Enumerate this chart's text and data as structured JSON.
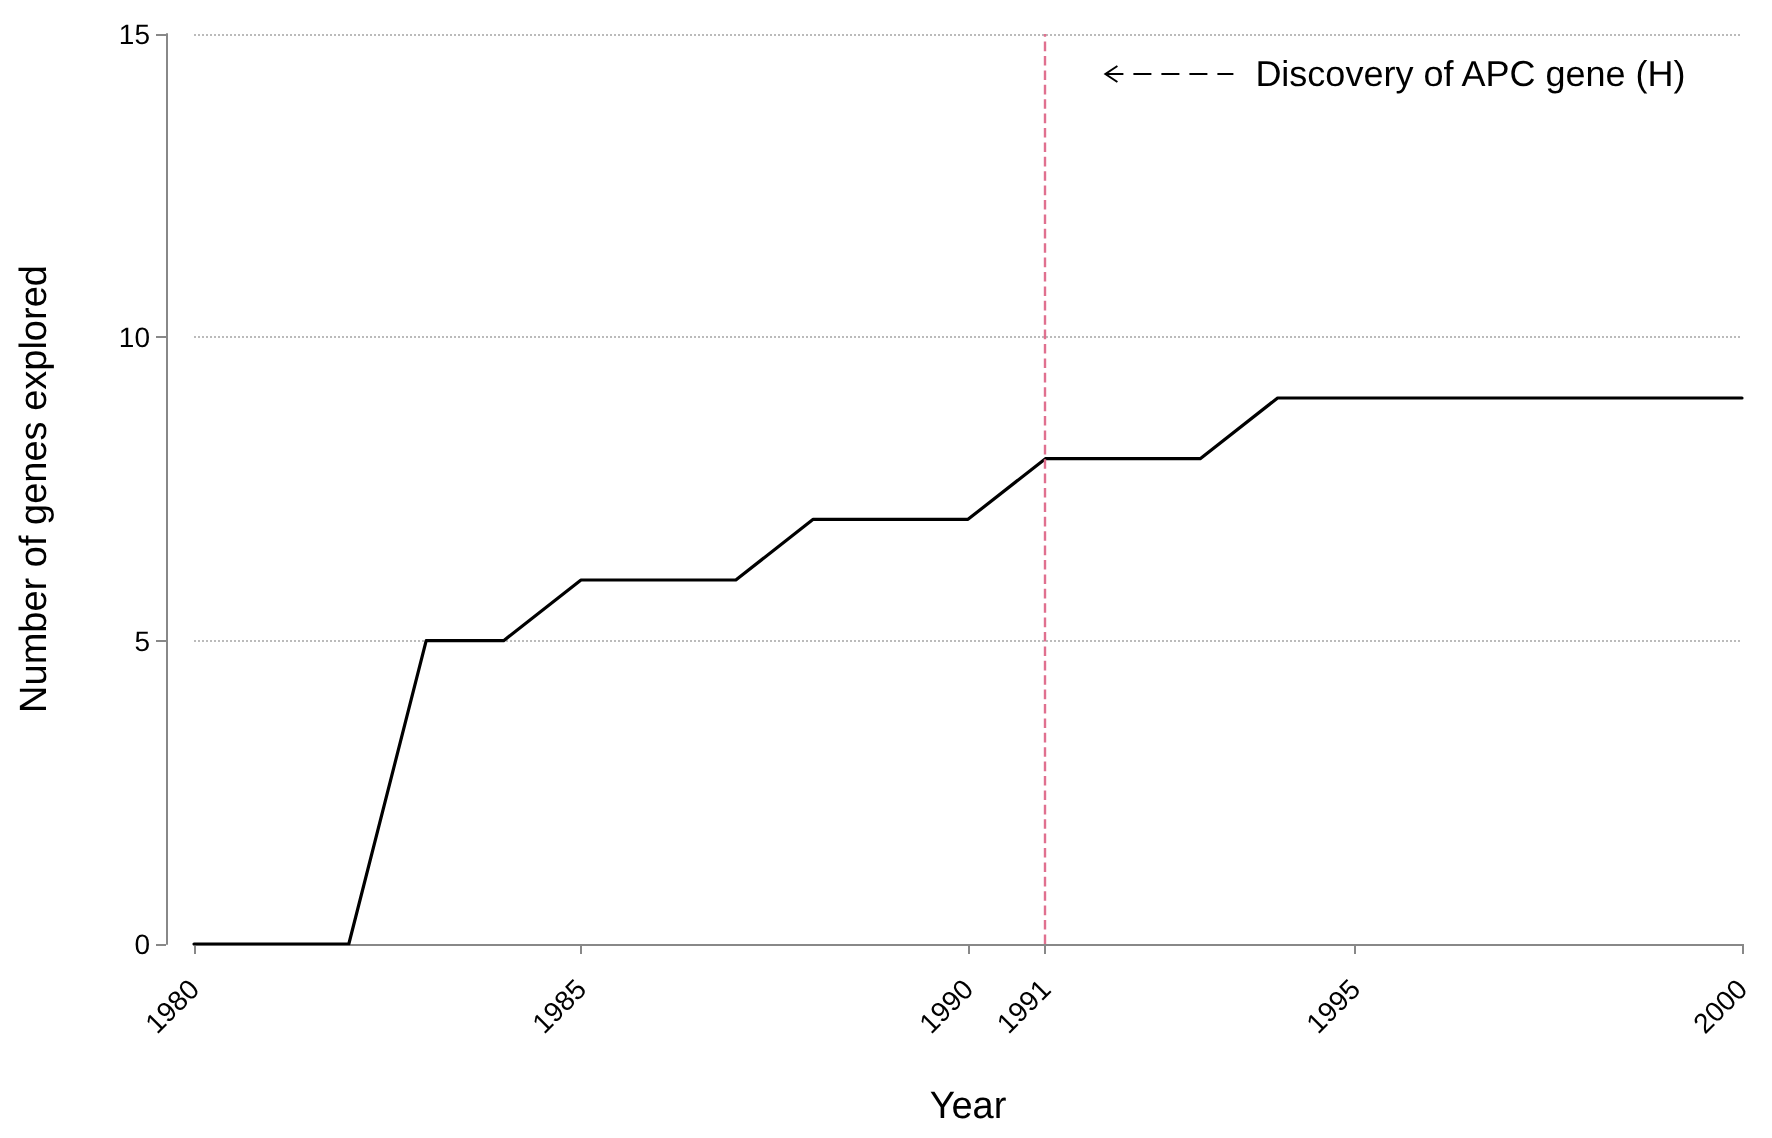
{
  "chart_data": {
    "type": "line",
    "xlabel": "Year",
    "ylabel": "Number of genes explored",
    "x": [
      1980,
      1981,
      1982,
      1983,
      1984,
      1985,
      1986,
      1987,
      1988,
      1989,
      1990,
      1991,
      1992,
      1993,
      1994,
      1995,
      1996,
      1997,
      1998,
      1999,
      2000
    ],
    "series": [
      {
        "color": "#000000",
        "values": [
          0,
          0,
          0,
          5,
          5,
          6,
          6,
          6,
          7,
          7,
          7,
          8,
          8,
          8,
          9,
          9,
          9,
          9,
          9,
          9,
          9
        ]
      }
    ],
    "xlim": [
      1980,
      2000
    ],
    "xticks": [
      1980,
      1985,
      1990,
      1991,
      1995,
      2000
    ],
    "ylim": [
      0,
      15
    ],
    "yticks": [
      0,
      5,
      10,
      15
    ],
    "grid": "y",
    "marker": "none",
    "line_style": "solid",
    "annotations": [
      "Discovery of APC gene (H)"
    ],
    "ref_lines": [
      {
        "axis": "x",
        "value": 1991,
        "color": "#e0708f",
        "line_style": "dashed"
      }
    ]
  }
}
